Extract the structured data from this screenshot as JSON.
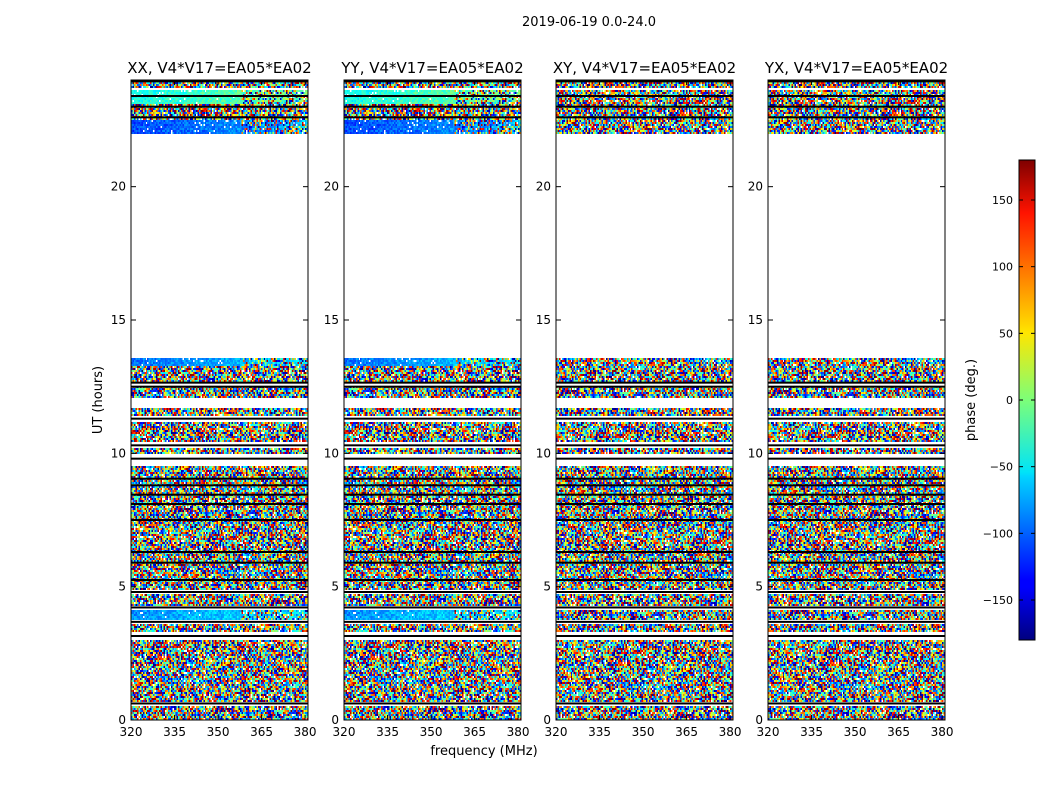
{
  "figure": {
    "suptitle": "2019-06-19 0.0-24.0",
    "xlabel": "frequency (MHz)",
    "ylabel": "UT (hours)",
    "colorbar_label": "phase (deg.)"
  },
  "chart_data": {
    "type": "heatmap",
    "title": "2019-06-19 0.0-24.0",
    "xlabel": "frequency (MHz)",
    "ylabel": "UT (hours)",
    "xlim": [
      320,
      381
    ],
    "ylim": [
      0,
      24
    ],
    "xticks": [
      320,
      335,
      350,
      365,
      380
    ],
    "yticks": [
      0,
      5,
      10,
      15,
      20
    ],
    "colormap": "jet",
    "colorbar": {
      "label": "phase (deg.)",
      "range": [
        -180,
        180
      ],
      "ticks": [
        -150,
        -100,
        -50,
        0,
        50,
        100,
        150
      ],
      "tick_labels": [
        "−150",
        "−100",
        "−50",
        "0",
        "50",
        "100",
        "150"
      ]
    },
    "panels": [
      {
        "name": "XX, V4*V17=EA05*EA02",
        "coherent": true
      },
      {
        "name": "YY, V4*V17=EA05*EA02",
        "coherent": true
      },
      {
        "name": "XY, V4*V17=EA05*EA02",
        "coherent": false
      },
      {
        "name": "YX, V4*V17=EA05*EA02",
        "coherent": false
      }
    ],
    "data_intervals_ut_hours": [
      [
        0.0,
        0.5
      ],
      [
        0.7,
        3.0
      ],
      [
        3.3,
        3.6
      ],
      [
        3.75,
        4.15
      ],
      [
        4.3,
        4.75
      ],
      [
        4.85,
        9.5
      ],
      [
        9.95,
        10.2
      ],
      [
        10.4,
        11.2
      ],
      [
        11.4,
        11.7
      ],
      [
        12.05,
        12.55
      ],
      [
        12.7,
        13.55
      ],
      [
        22.0,
        23.6
      ],
      [
        23.7,
        23.9
      ]
    ],
    "gap_lines_ut_hours": [
      0.62,
      3.15,
      3.68,
      4.22,
      4.8,
      5.25,
      5.9,
      6.3,
      7.5,
      8.1,
      8.45,
      8.8,
      9.05,
      9.8,
      10.3,
      11.3,
      12.5,
      12.65,
      22.6,
      23.0,
      23.4,
      23.95
    ],
    "coherent_bands": [
      {
        "ut": [
          3.75,
          4.15
        ],
        "phase_deg": -85
      },
      {
        "ut": [
          22.0,
          22.5
        ],
        "phase_deg": -110
      },
      {
        "ut": [
          23.1,
          23.6
        ],
        "phase_deg": -40
      },
      {
        "ut": [
          13.3,
          13.55
        ],
        "phase_deg": -95
      }
    ]
  }
}
